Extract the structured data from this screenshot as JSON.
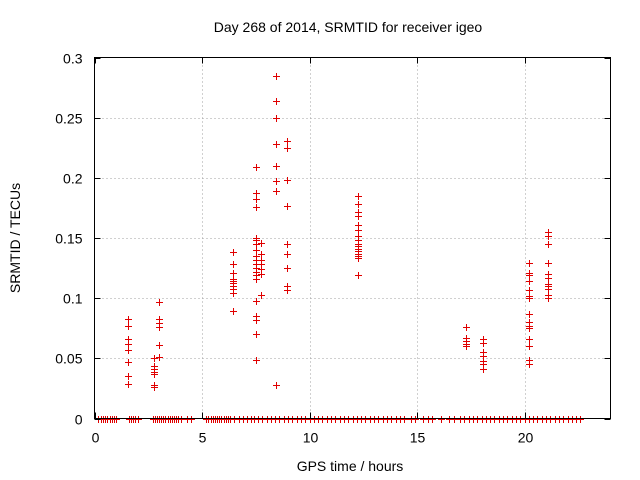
{
  "chart_data": {
    "type": "scatter",
    "title": "Day 268 of 2014, SRMTID for receiver igeo",
    "xlabel": "GPS time / hours",
    "ylabel": "SRMTID / TECUs",
    "xlim": [
      0,
      24
    ],
    "ylim": [
      0,
      0.3
    ],
    "grid": true,
    "marker": "+",
    "color": "#e00000",
    "x_ticks": [
      0,
      5,
      10,
      15,
      20
    ],
    "y_ticks": [
      0,
      0.05,
      0.1,
      0.15,
      0.2,
      0.25,
      0.3
    ],
    "x_tick_labels": [
      "0",
      "5",
      "10",
      "15",
      "20"
    ],
    "y_tick_labels": [
      "0",
      "0.05",
      "0.1",
      "0.15",
      "0.2",
      "0.25",
      "0.3"
    ],
    "series": [
      {
        "name": "SRMTID",
        "clusters": [
          {
            "x": 1.55,
            "y": [
              0.083,
              0.077,
              0.066,
              0.062,
              0.057,
              0.047,
              0.035,
              0.029
            ]
          },
          {
            "x": 2.75,
            "y": [
              0.05,
              0.044,
              0.041,
              0.039,
              0.037,
              0.028,
              0.026
            ]
          },
          {
            "x": 3.0,
            "y": [
              0.097,
              0.083,
              0.079,
              0.076,
              0.061,
              0.051
            ]
          },
          {
            "x": 6.45,
            "y": [
              0.138,
              0.128,
              0.121,
              0.116,
              0.114,
              0.113,
              0.11,
              0.108,
              0.104,
              0.089
            ]
          },
          {
            "x": 7.5,
            "y": [
              0.209,
              0.187,
              0.182,
              0.176,
              0.15,
              0.148,
              0.145,
              0.14,
              0.135,
              0.132,
              0.128,
              0.125,
              0.122,
              0.119,
              0.116,
              0.098,
              0.085,
              0.082,
              0.07,
              0.049
            ]
          },
          {
            "x": 7.75,
            "y": [
              0.146,
              0.137,
              0.132,
              0.128,
              0.124,
              0.12,
              0.103
            ]
          },
          {
            "x": 8.45,
            "y": [
              0.285,
              0.264,
              0.25,
              0.228,
              0.21,
              0.197,
              0.189,
              0.028
            ]
          },
          {
            "x": 8.95,
            "y": [
              0.231,
              0.225,
              0.198,
              0.177,
              0.145,
              0.137,
              0.125,
              0.11,
              0.107
            ]
          },
          {
            "x": 12.25,
            "y": [
              0.185,
              0.178,
              0.172,
              0.168,
              0.161,
              0.157,
              0.152,
              0.148,
              0.145,
              0.143,
              0.141,
              0.139,
              0.137,
              0.135,
              0.133,
              0.119
            ]
          },
          {
            "x": 17.3,
            "y": [
              0.076,
              0.067,
              0.064,
              0.062,
              0.06
            ]
          },
          {
            "x": 18.05,
            "y": [
              0.066,
              0.063,
              0.055,
              0.052,
              0.048,
              0.045,
              0.041
            ]
          },
          {
            "x": 20.2,
            "y": [
              0.129,
              0.121,
              0.119,
              0.114,
              0.107,
              0.102,
              0.1,
              0.087,
              0.08,
              0.077,
              0.075,
              0.066,
              0.06,
              0.049,
              0.045
            ]
          },
          {
            "x": 21.1,
            "y": [
              0.155,
              0.152,
              0.145,
              0.129,
              0.12,
              0.117,
              0.112,
              0.11,
              0.108,
              0.103,
              0.1
            ]
          }
        ],
        "zero_x": [
          0.15,
          0.3,
          0.4,
          0.5,
          0.6,
          0.7,
          0.8,
          0.9,
          1.0,
          1.6,
          1.7,
          1.8,
          1.9,
          2.0,
          2.7,
          2.8,
          2.9,
          3.0,
          3.1,
          3.2,
          3.3,
          3.4,
          3.5,
          3.6,
          3.7,
          3.8,
          3.9,
          4.0,
          4.3,
          4.5,
          5.2,
          5.3,
          5.4,
          5.5,
          5.6,
          5.7,
          5.8,
          5.9,
          6.0,
          6.1,
          6.2,
          6.3,
          6.5,
          6.7,
          6.9,
          7.1,
          7.3,
          7.4,
          7.6,
          7.8,
          8.0,
          8.2,
          8.4,
          8.6,
          8.8,
          9.0,
          9.2,
          9.4,
          9.6,
          9.8,
          10.0,
          10.2,
          10.4,
          10.6,
          10.8,
          11.0,
          11.2,
          11.4,
          11.6,
          11.8,
          12.0,
          12.2,
          12.4,
          12.6,
          12.8,
          13.0,
          13.2,
          13.4,
          13.6,
          13.8,
          14.0,
          14.2,
          14.4,
          14.7,
          14.9,
          15.3,
          15.5,
          15.7,
          16.1,
          16.5,
          16.7,
          17.0,
          17.2,
          17.4,
          17.6,
          17.8,
          18.0,
          18.2,
          18.4,
          18.6,
          18.8,
          19.0,
          19.2,
          19.4,
          19.6,
          19.8,
          20.0,
          20.2,
          20.4,
          20.6,
          20.8,
          21.0,
          21.2,
          21.4,
          21.6,
          21.8,
          22.0,
          22.2,
          22.4,
          22.6
        ]
      }
    ]
  }
}
